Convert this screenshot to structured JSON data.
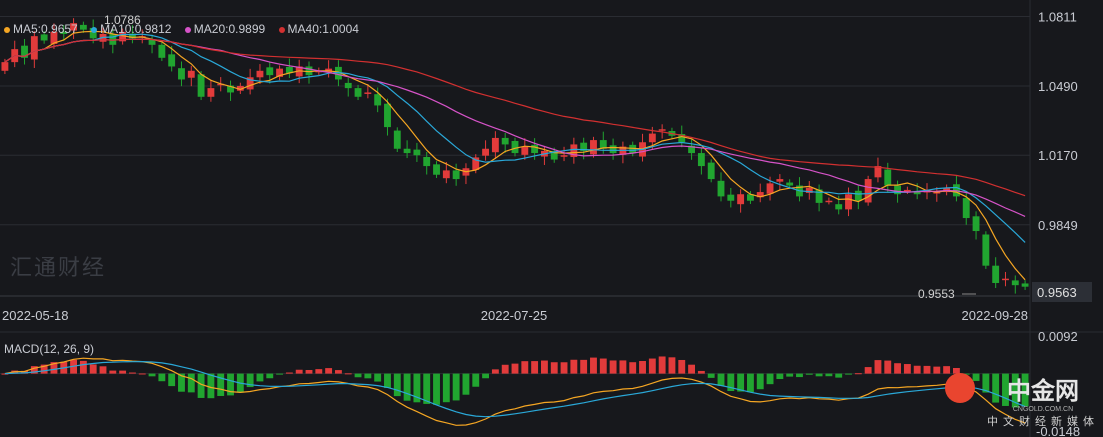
{
  "colors": {
    "background": "#17181c",
    "up": "#e23b3b",
    "down": "#21a530",
    "ma5": "#f5a623",
    "ma10": "#2aa8d8",
    "ma20": "#d653c8",
    "ma40": "#d23030",
    "macd_dif": "#f5a623",
    "macd_dea": "#2aa8d8"
  },
  "legend": {
    "ma5": "MA5:0.9657",
    "ma10": "MA10:0.9812",
    "ma20": "MA20:0.9899",
    "ma40": "MA40:1.0004"
  },
  "macd_label": "MACD(12, 26, 9)",
  "watermark": "汇通财经",
  "logo": {
    "main": "中金网",
    "small": "CNGOLD.COM.CN",
    "sub": "中文财经新媒体"
  },
  "chart_data": {
    "type": "candlestick",
    "price_axis": {
      "ticks": [
        "1.0811",
        "1.0490",
        "1.0170",
        "0.9849"
      ],
      "ylim": [
        0.952,
        1.085
      ],
      "current_price": "0.9563"
    },
    "x_ticks": [
      "2022-05-18",
      "2022-07-25",
      "2022-09-28"
    ],
    "annotations": {
      "high": "1.0786",
      "low": "0.9553"
    },
    "macd_axis": {
      "ticks": [
        "0.0092",
        "-0.0148"
      ],
      "ylim": [
        -0.0155,
        0.01
      ]
    },
    "close": [
      1.06,
      1.066,
      1.062,
      1.072,
      1.07,
      1.074,
      1.073,
      1.078,
      1.075,
      1.071,
      1.073,
      1.068,
      1.074,
      1.071,
      1.072,
      1.068,
      1.062,
      1.058,
      1.052,
      1.056,
      1.044,
      1.048,
      1.05,
      1.046,
      1.049,
      1.053,
      1.056,
      1.054,
      1.057,
      1.055,
      1.058,
      1.054,
      1.056,
      1.057,
      1.052,
      1.048,
      1.044,
      1.046,
      1.04,
      1.03,
      1.02,
      1.018,
      1.017,
      1.012,
      1.008,
      1.01,
      1.006,
      1.011,
      1.016,
      1.02,
      1.025,
      1.022,
      1.018,
      1.021,
      1.018,
      1.019,
      1.015,
      1.017,
      1.022,
      1.019,
      1.024,
      1.02,
      1.018,
      1.021,
      1.018,
      1.023,
      1.027,
      1.029,
      1.026,
      1.023,
      1.018,
      1.012,
      1.006,
      0.998,
      0.996,
      0.999,
      0.996,
      1.0,
      1.004,
      1.006,
      1.003,
      0.998,
      1.002,
      0.995,
      0.996,
      0.992,
      0.999,
      0.996,
      1.006,
      1.012,
      1.003,
      0.999,
      1.001,
      0.999,
      1.001,
      1.0,
      1.002,
      0.998,
      0.988,
      0.982,
      0.966,
      0.958,
      0.96,
      0.957,
      0.9563
    ],
    "ma5_end": 0.9657,
    "ma10_end": 0.9812,
    "ma20_end": 0.9899,
    "ma40_end": 1.0004
  }
}
